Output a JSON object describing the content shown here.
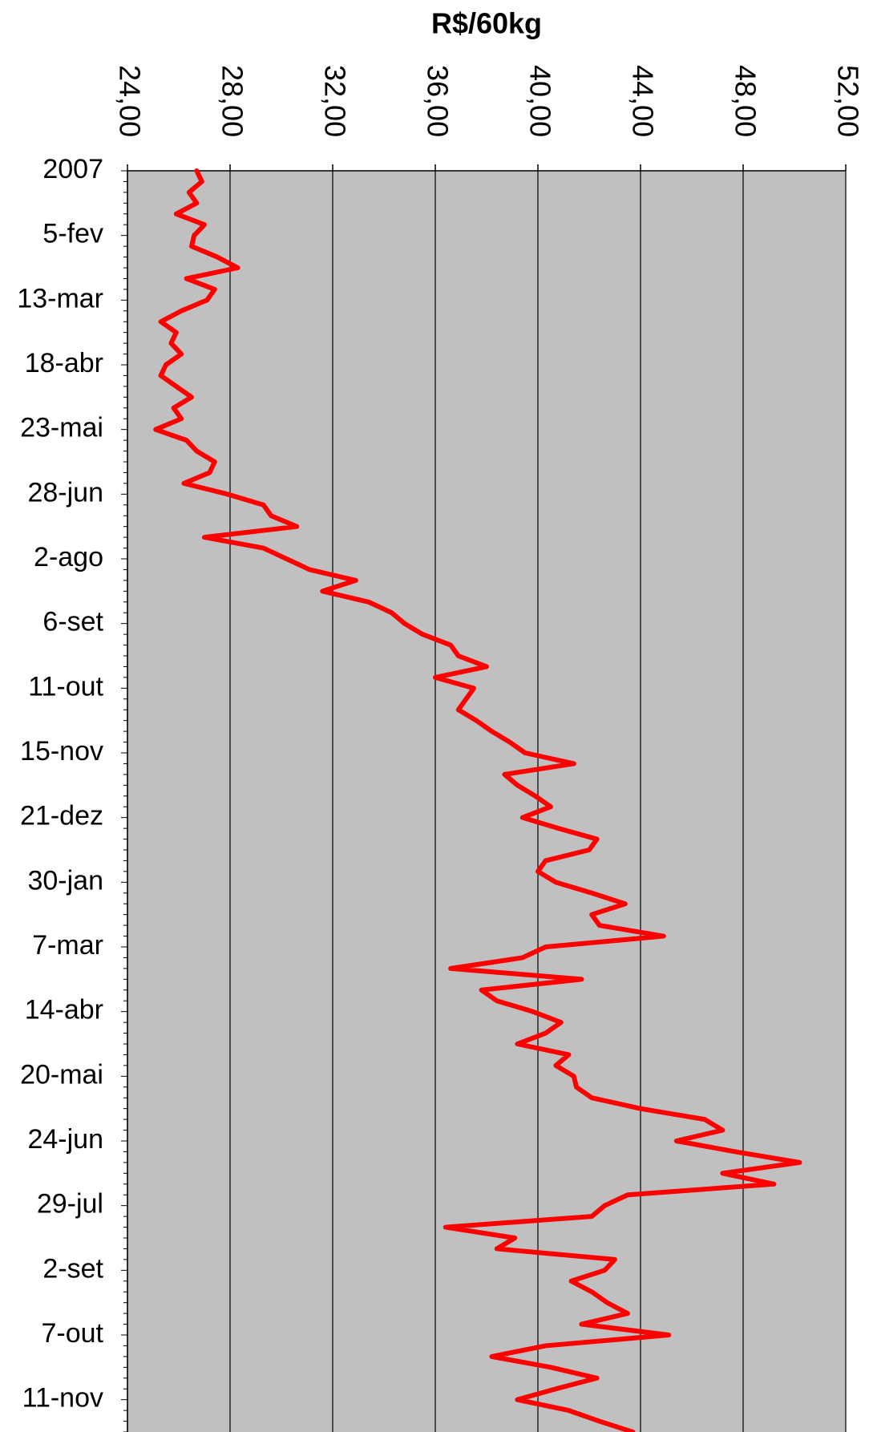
{
  "chart_data": {
    "type": "line",
    "orientation": "horizontal",
    "x_label": "R$/60kg",
    "color": "#ff0000",
    "background": "#c0c0c0",
    "grid": true,
    "xlim": [
      24,
      52
    ],
    "xticks": [
      {
        "value": 24,
        "label": "24,00"
      },
      {
        "value": 28,
        "label": "28,00"
      },
      {
        "value": 32,
        "label": "32,00"
      },
      {
        "value": 36,
        "label": "36,00"
      },
      {
        "value": 40,
        "label": "40,00"
      },
      {
        "value": 44,
        "label": "44,00"
      },
      {
        "value": 48,
        "label": "48,00"
      },
      {
        "value": 52,
        "label": "52,00"
      }
    ],
    "categories": [
      "2007",
      null,
      null,
      null,
      null,
      null,
      "5-fev",
      null,
      null,
      null,
      null,
      null,
      "13-mar",
      null,
      null,
      null,
      null,
      null,
      "18-abr",
      null,
      null,
      null,
      null,
      null,
      "23-mai",
      null,
      null,
      null,
      null,
      null,
      "28-jun",
      null,
      null,
      null,
      null,
      null,
      "2-ago",
      null,
      null,
      null,
      null,
      null,
      "6-set",
      null,
      null,
      null,
      null,
      null,
      "11-out",
      null,
      null,
      null,
      null,
      null,
      "15-nov",
      null,
      null,
      null,
      null,
      null,
      "21-dez",
      null,
      null,
      null,
      null,
      null,
      "30-jan",
      null,
      null,
      null,
      null,
      null,
      "7-mar",
      null,
      null,
      null,
      null,
      null,
      "14-abr",
      null,
      null,
      null,
      null,
      null,
      "20-mai",
      null,
      null,
      null,
      null,
      null,
      "24-jun",
      null,
      null,
      null,
      null,
      null,
      "29-jul",
      null,
      null,
      null,
      null,
      null,
      "2-set",
      null,
      null,
      null,
      null,
      null,
      "7-out",
      null,
      null,
      null,
      null,
      null,
      "11-nov",
      null,
      null,
      null
    ],
    "values": [
      26.7,
      26.9,
      26.4,
      26.7,
      25.9,
      27.0,
      26.6,
      26.5,
      27.5,
      28.3,
      26.3,
      27.4,
      27.1,
      26.1,
      25.3,
      25.9,
      25.7,
      26.1,
      25.5,
      25.3,
      25.9,
      26.5,
      25.8,
      26.1,
      25.1,
      26.3,
      26.7,
      27.4,
      27.2,
      26.2,
      27.9,
      29.3,
      29.6,
      30.6,
      27.0,
      29.3,
      30.2,
      31.1,
      32.9,
      31.6,
      33.4,
      34.3,
      34.8,
      35.5,
      36.6,
      36.9,
      38.0,
      36.0,
      37.5,
      37.2,
      36.9,
      37.6,
      38.2,
      38.9,
      39.5,
      41.4,
      38.7,
      39.2,
      39.9,
      40.5,
      39.4,
      40.8,
      42.3,
      42.0,
      40.3,
      40.0,
      40.7,
      42.1,
      43.4,
      42.1,
      42.4,
      44.9,
      40.3,
      39.4,
      36.6,
      41.7,
      37.8,
      38.4,
      39.8,
      40.9,
      40.3,
      39.2,
      41.2,
      40.7,
      41.4,
      41.5,
      42.1,
      44.0,
      46.5,
      47.2,
      45.4,
      47.7,
      50.2,
      47.2,
      49.2,
      43.5,
      42.6,
      42.1,
      36.4,
      39.1,
      38.4,
      43.0,
      42.6,
      41.3,
      42.1,
      42.7,
      43.5,
      41.7,
      45.1,
      40.3,
      38.2,
      40.5,
      42.3,
      40.7,
      39.2,
      41.2,
      42.4,
      43.7
    ]
  }
}
